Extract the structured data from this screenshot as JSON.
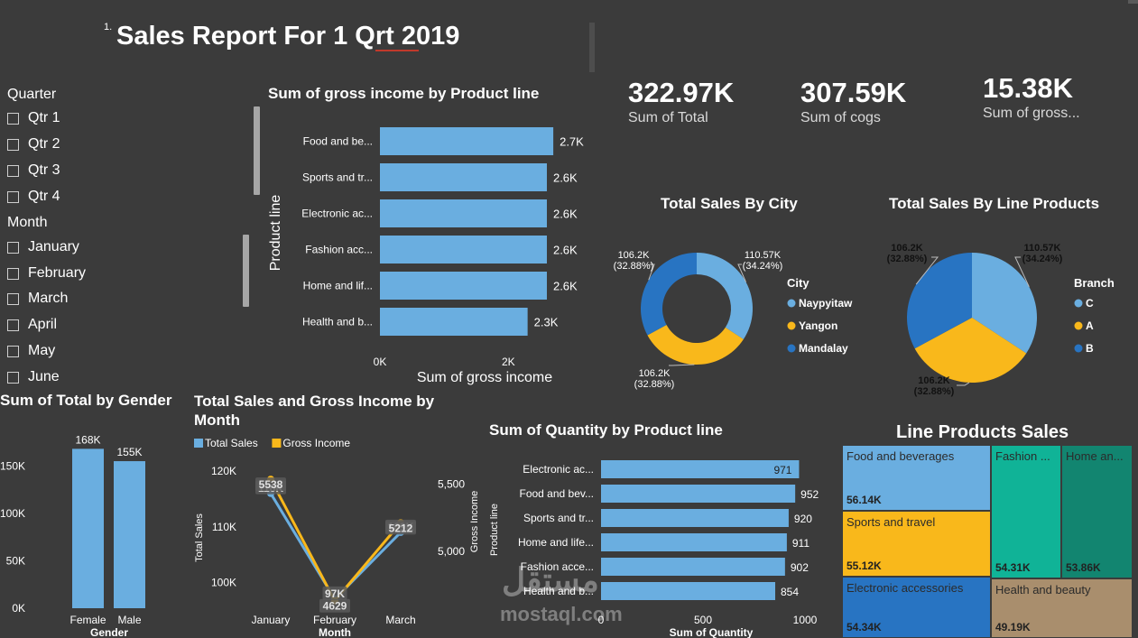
{
  "report": {
    "page_marker": "1.",
    "title": "Sales Report For 1 Qrt 2019"
  },
  "slicers": {
    "quarter": {
      "label": "Quarter",
      "items": [
        "Qtr 1",
        "Qtr 2",
        "Qtr 3",
        "Qtr 4"
      ]
    },
    "month": {
      "label": "Month",
      "items": [
        "January",
        "February",
        "March",
        "April",
        "May",
        "June"
      ]
    }
  },
  "kpis": [
    {
      "value": "322.97K",
      "label": "Sum of Total"
    },
    {
      "value": "307.59K",
      "label": "Sum of cogs"
    },
    {
      "value": "15.38K",
      "label": "Sum of gross..."
    }
  ],
  "colors": {
    "background": "#3b3b3b",
    "blue_light": "#6aaee0",
    "yellow": "#f9b81b",
    "blue_dark": "#2874c2",
    "teal": "#10b397",
    "teal_dark": "#128570",
    "tan": "#a98e6d"
  },
  "watermark": {
    "arabic": "مستقل",
    "latin": "mostaql.com"
  },
  "chart_data": [
    {
      "id": "gross-income-by-product",
      "type": "bar",
      "orientation": "horizontal",
      "title": "Sum of gross income by Product line",
      "xlabel": "Sum of gross income",
      "ylabel": "Product line",
      "categories": [
        "Food and be...",
        "Sports and tr...",
        "Electronic ac...",
        "Fashion acc...",
        "Home and lif...",
        "Health and b..."
      ],
      "values": [
        2.7,
        2.6,
        2.6,
        2.6,
        2.6,
        2.3
      ],
      "data_labels": [
        "2.7K",
        "2.6K",
        "2.6K",
        "2.6K",
        "2.6K",
        "2.3K"
      ],
      "xticks": [
        "0K",
        "2K"
      ],
      "xlim": [
        0,
        3.05
      ],
      "color": "#6aaee0"
    },
    {
      "id": "sales-by-city",
      "type": "pie",
      "donut": true,
      "title": "Total Sales By City",
      "legend_title": "City",
      "legend_position": "right",
      "labels": [
        "Naypyitaw",
        "Yangon",
        "Mandalay"
      ],
      "values": [
        110.57,
        106.2,
        106.2
      ],
      "data_labels": [
        [
          "110.57K",
          "(34.24%)"
        ],
        [
          "106.2K",
          "(32.88%)"
        ],
        [
          "106.2K",
          "(32.88%)"
        ]
      ],
      "colors": [
        "#6aaee0",
        "#f9b81b",
        "#2874c2"
      ]
    },
    {
      "id": "sales-by-line-products",
      "type": "pie",
      "donut": false,
      "title": "Total Sales By Line Products",
      "legend_title": "Branch",
      "legend_position": "right",
      "labels": [
        "C",
        "A",
        "B"
      ],
      "values": [
        110.57,
        106.2,
        106.2
      ],
      "data_labels": [
        [
          "110.57K",
          "(34.24%)"
        ],
        [
          "106.2K",
          "(32.88%)"
        ],
        [
          "106.2K",
          "(32.88%)"
        ]
      ],
      "colors": [
        "#6aaee0",
        "#f9b81b",
        "#2874c2"
      ]
    },
    {
      "id": "total-by-gender",
      "type": "bar",
      "orientation": "vertical",
      "title": "Sum of Total by Gender",
      "xlabel": "Gender",
      "ylabel": "",
      "categories": [
        "Female",
        "Male"
      ],
      "values": [
        168,
        155
      ],
      "data_labels": [
        "168K",
        "155K"
      ],
      "yticks": [
        0,
        50,
        100,
        150
      ],
      "ytick_labels": [
        "0K",
        "50K",
        "100K",
        "150K"
      ],
      "ylim": [
        0,
        175
      ],
      "color": "#6aaee0"
    },
    {
      "id": "sales-gross-by-month",
      "type": "line",
      "title": "Total Sales and Gross Income by Month",
      "xlabel": "Month",
      "ylabel": "Total Sales",
      "y2label": "Gross Income",
      "categories": [
        "January",
        "February",
        "March"
      ],
      "series": [
        {
          "name": "Total Sales",
          "values": [
            116,
            97,
            109
          ],
          "data_labels": [
            "116K",
            "97K",
            "109K"
          ],
          "axis": "left",
          "color": "#6aaee0"
        },
        {
          "name": "Gross Income",
          "values": [
            5538,
            4629,
            5212
          ],
          "data_labels": [
            "5538",
            "4629",
            "5212"
          ],
          "axis": "right",
          "color": "#f9b81b"
        }
      ],
      "yticks": [
        100,
        110,
        120
      ],
      "ytick_labels": [
        "100K",
        "110K",
        "120K"
      ],
      "ylim": [
        96,
        121
      ],
      "y2ticks": [
        5000,
        5500
      ],
      "y2tick_labels": [
        "5,000",
        "5,500"
      ],
      "y2lim": [
        4600,
        5640
      ],
      "legend_position": "top-left"
    },
    {
      "id": "quantity-by-product",
      "type": "bar",
      "orientation": "horizontal",
      "title": "Sum of Quantity by Product line",
      "xlabel": "Sum of Quantity",
      "ylabel": "Product line",
      "categories": [
        "Electronic ac...",
        "Food and bev...",
        "Sports and tr...",
        "Home and life...",
        "Fashion acce...",
        "Health and b..."
      ],
      "values": [
        971,
        952,
        920,
        911,
        902,
        854
      ],
      "data_labels": [
        "971",
        "952",
        "920",
        "911",
        "902",
        "854"
      ],
      "xticks": [
        0,
        500,
        1000
      ],
      "xtick_labels": [
        "0",
        "500",
        "1000"
      ],
      "xlim": [
        0,
        1000
      ],
      "color": "#6aaee0"
    },
    {
      "id": "line-products-sales",
      "type": "treemap",
      "title": "Line Products Sales",
      "labels": [
        "Food and beverages",
        "Sports and travel",
        "Electronic accessories",
        "Fashion ...",
        "Home an...",
        "Health and beauty"
      ],
      "values": [
        56.14,
        55.12,
        54.34,
        54.31,
        53.86,
        49.19
      ],
      "data_labels": [
        "56.14K",
        "55.12K",
        "54.34K",
        "54.31K",
        "53.86K",
        "49.19K"
      ],
      "colors": [
        "#6aaee0",
        "#f9b81b",
        "#2874c2",
        "#10b397",
        "#128570",
        "#a98e6d"
      ]
    }
  ]
}
